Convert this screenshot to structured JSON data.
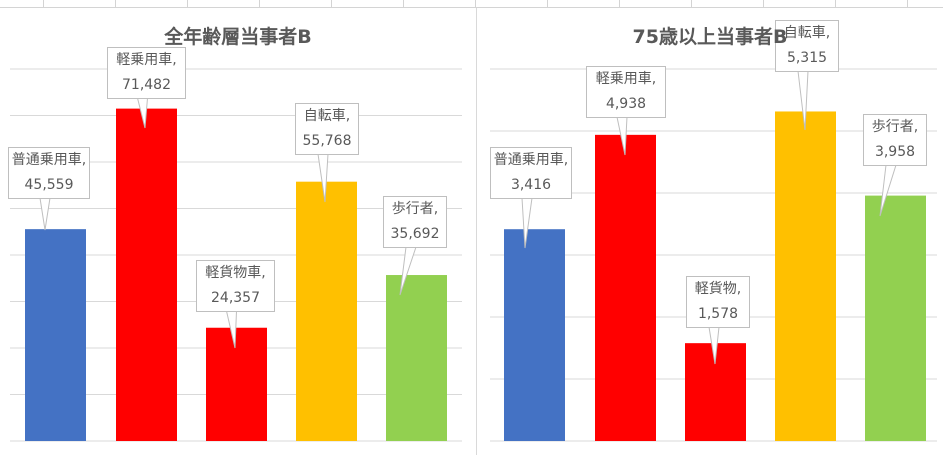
{
  "chart_data": [
    {
      "type": "bar",
      "title": "全年齢層当事者B",
      "categories": [
        "普通乗用車",
        "軽乗用車",
        "軽貨物車",
        "自転車",
        "歩行者"
      ],
      "values": [
        45559,
        71482,
        24357,
        55768,
        35692
      ],
      "data_labels": [
        "普通乗用車,|45,559",
        "軽乗用車,|71,482",
        "軽貨物車,|24,357",
        "自転車,|55,768",
        "歩行者,|35,692"
      ],
      "colors": [
        "#4472c4",
        "#ff0000",
        "#ff0000",
        "#ffc000",
        "#92d050"
      ],
      "ylim": [
        0,
        80000
      ],
      "grid": true,
      "legend": "none"
    },
    {
      "type": "bar",
      "title": "75歳以上当事者B",
      "categories": [
        "普通乗用車",
        "軽乗用車",
        "軽貨物",
        "自転車",
        "歩行者"
      ],
      "values": [
        3416,
        4938,
        1578,
        5315,
        3958
      ],
      "data_labels": [
        "普通乗用車,|3,416",
        "軽乗用車,|4,938",
        "軽貨物,|1,578",
        "自転車,|5,315",
        "歩行者,|3,958"
      ],
      "colors": [
        "#4472c4",
        "#ff0000",
        "#ff0000",
        "#ffc000",
        "#92d050"
      ],
      "ylim": [
        0,
        6000
      ],
      "grid": true,
      "legend": "none"
    }
  ]
}
